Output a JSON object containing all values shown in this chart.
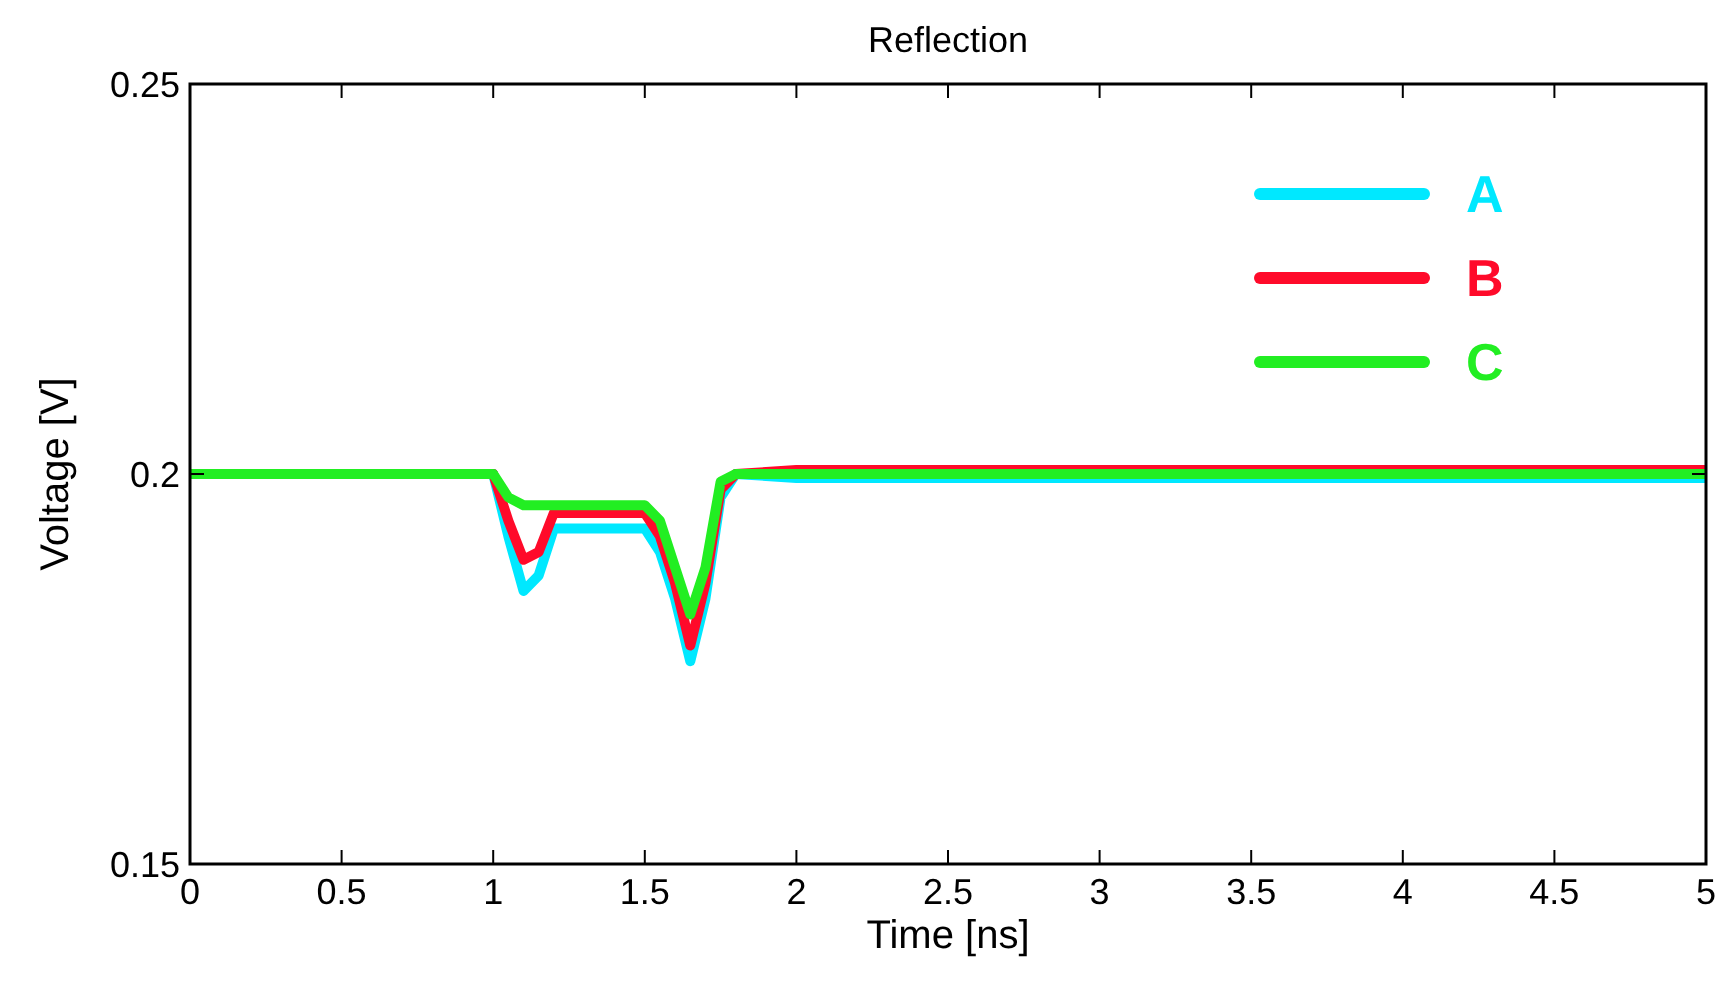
{
  "chart_data": {
    "type": "line",
    "title": "Reflection",
    "xlabel": "Time [ns]",
    "ylabel": "Voltage [V]",
    "x": [
      0,
      1.0,
      1.05,
      1.1,
      1.15,
      1.2,
      1.3,
      1.4,
      1.5,
      1.55,
      1.6,
      1.65,
      1.7,
      1.75,
      1.8,
      2,
      2.5,
      3,
      3.5,
      4,
      4.5,
      5
    ],
    "series": [
      {
        "name": "A",
        "color": "#00e8ff",
        "values": [
          0.2,
          0.2,
          0.192,
          0.185,
          0.187,
          0.193,
          0.193,
          0.193,
          0.193,
          0.19,
          0.184,
          0.176,
          0.184,
          0.197,
          0.2,
          0.1995,
          0.1995,
          0.1995,
          0.1995,
          0.1995,
          0.1995,
          0.1995
        ]
      },
      {
        "name": "B",
        "color": "#ff0a2a",
        "values": [
          0.2,
          0.2,
          0.194,
          0.189,
          0.19,
          0.195,
          0.195,
          0.195,
          0.195,
          0.192,
          0.186,
          0.178,
          0.186,
          0.198,
          0.2,
          0.2005,
          0.2005,
          0.2005,
          0.2005,
          0.2005,
          0.2005,
          0.2005
        ]
      },
      {
        "name": "C",
        "color": "#22ee22",
        "values": [
          0.2,
          0.2,
          0.197,
          0.196,
          0.196,
          0.196,
          0.196,
          0.196,
          0.196,
          0.194,
          0.188,
          0.182,
          0.188,
          0.199,
          0.2,
          0.2,
          0.2,
          0.2,
          0.2,
          0.2,
          0.2,
          0.2
        ]
      }
    ],
    "xlim": [
      0,
      5
    ],
    "xticks": [
      0,
      0.5,
      1,
      1.5,
      2,
      2.5,
      3,
      3.5,
      4,
      4.5,
      5
    ],
    "ylim": [
      0.15,
      0.25
    ],
    "yticks": [
      0.15,
      0.2,
      0.25
    ],
    "grid": false,
    "legend": "top right",
    "line_style": "solid",
    "marker": "none"
  }
}
